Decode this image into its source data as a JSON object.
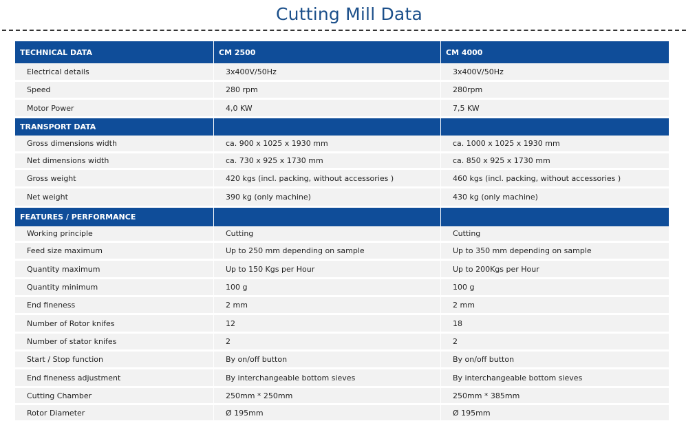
{
  "title": "Cutting Mill Data",
  "colors": {
    "header_bg": "#0f4d99",
    "row_bg": "#f2f2f2",
    "title": "#1b4f8a"
  },
  "sections": [
    {
      "header": [
        "TECHNICAL DATA",
        "CM 2500",
        "CM 4000"
      ],
      "rows": [
        [
          "Electrical details",
          "3x400V/50Hz",
          "3x400V/50Hz"
        ],
        [
          "Speed",
          "280 rpm",
          "280rpm"
        ],
        [
          "Motor Power",
          "4,0 KW",
          "7,5 KW"
        ]
      ]
    },
    {
      "header": [
        "TRANSPORT DATA",
        "",
        ""
      ],
      "rows": [
        [
          "Gross dimensions width",
          "ca. 900 x 1025 x 1930 mm",
          "ca. 1000 x 1025 x 1930 mm"
        ],
        [
          "Net dimensions width",
          "ca. 730 x 925 x 1730 mm",
          "ca. 850 x 925 x 1730  mm"
        ],
        [
          "Gross weight",
          "420 kgs (incl.  packing, without  accessories )",
          "460 kgs (incl.  packing, without  accessories )"
        ],
        [
          "Net weight",
          "390 kg (only machine)",
          "430 kg (only machine)"
        ]
      ]
    },
    {
      "header": [
        "FEATURES / PERFORMANCE",
        "",
        ""
      ],
      "rows": [
        [
          "Working principle",
          "Cutting",
          "Cutting"
        ],
        [
          "Feed size maximum",
          "Up to 250 mm depending on sample",
          "Up to 350 mm depending on sample"
        ],
        [
          "Quantity maximum",
          "Up to 150 Kgs per Hour",
          "Up to 200Kgs per Hour"
        ],
        [
          "Quantity minimum",
          "100 g",
          "100 g"
        ],
        [
          "End fineness",
          "2 mm",
          "2 mm"
        ],
        [
          "Number of Rotor knifes",
          "12",
          "18"
        ],
        [
          "Number of stator knifes",
          "2",
          "2"
        ],
        [
          "Start / Stop function",
          "By on/off button",
          "By on/off button"
        ],
        [
          "End fineness adjustment",
          "By interchangeable bottom sieves",
          "By interchangeable bottom sieves"
        ],
        [
          "Cutting Chamber",
          "250mm * 250mm",
          "250mm * 385mm"
        ],
        [
          "Rotor Diameter",
          "Ø 195mm",
          "Ø 195mm"
        ]
      ]
    }
  ]
}
